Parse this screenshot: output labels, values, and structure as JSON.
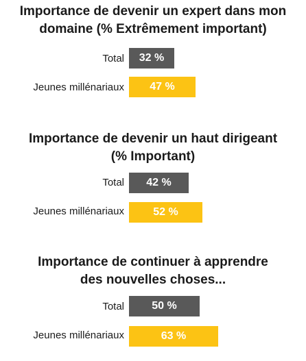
{
  "chart_data": [
    {
      "type": "bar",
      "orientation": "horizontal",
      "title": "Importance de devenir un expert dans mon domaine (% Extrêmement important)",
      "title_lines": [
        "Importance de devenir un expert dans mon",
        "domaine (% Extrêmement important)"
      ],
      "categories": [
        "Total",
        "Jeunes millénariaux"
      ],
      "values": [
        32,
        47
      ],
      "value_labels": [
        "32 %",
        "47 %"
      ],
      "unit": "%",
      "xlim": [
        0,
        100
      ],
      "grid": false,
      "legend": "none"
    },
    {
      "type": "bar",
      "orientation": "horizontal",
      "title": "Importance de devenir un haut dirigeant (% Important)",
      "title_lines": [
        "Importance de devenir un haut dirigeant",
        "(% Important)"
      ],
      "categories": [
        "Total",
        "Jeunes millénariaux"
      ],
      "values": [
        42,
        52
      ],
      "value_labels": [
        "42 %",
        "52 %"
      ],
      "unit": "%",
      "xlim": [
        0,
        100
      ],
      "grid": false,
      "legend": "none"
    },
    {
      "type": "bar",
      "orientation": "horizontal",
      "title": "Importance de continuer à apprendre des nouvelles choses...",
      "title_lines": [
        "Importance de continuer à apprendre",
        "des nouvelles choses..."
      ],
      "categories": [
        "Total",
        "Jeunes millénariaux"
      ],
      "values": [
        50,
        63
      ],
      "value_labels": [
        "50 %",
        "63 %"
      ],
      "unit": "%",
      "xlim": [
        0,
        100
      ],
      "grid": false,
      "legend": "none"
    }
  ],
  "colors": {
    "Total": "#595959",
    "Jeunes millénariaux": "#fcc314",
    "bar_text": "#ffffff",
    "title_text": "#1a1a1a"
  }
}
